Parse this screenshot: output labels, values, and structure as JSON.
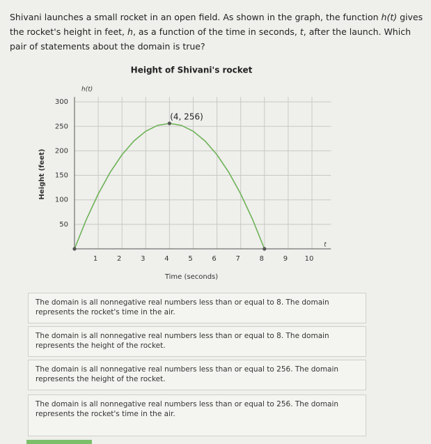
{
  "question": {
    "parts": [
      "Shivani launches a small rocket in an open field. As shown in the graph, the function ",
      "h(t)",
      " gives the rocket's height in feet, ",
      "h",
      ", as a function of the time in seconds, ",
      "t",
      ", after the launch. Which pair of statements about the domain is true?"
    ]
  },
  "chart_data": {
    "type": "line",
    "title": "Height of Shivani's rocket",
    "x_label": "Time (seconds)",
    "y_label": "Height (feet)",
    "x_axis_name": "t",
    "y_axis_name": "h(t)",
    "annotation": "(4, 256)",
    "x": [
      0,
      0.5,
      1,
      1.5,
      2,
      2.5,
      3,
      3.5,
      4,
      4.5,
      5,
      5.5,
      6,
      6.5,
      7,
      7.5,
      8
    ],
    "values": [
      0,
      60,
      112,
      156,
      192,
      220,
      240,
      252,
      256,
      252,
      240,
      220,
      192,
      156,
      112,
      60,
      0
    ],
    "color": "#6db356",
    "points": {
      "x": [
        0,
        4,
        8
      ],
      "y": [
        0,
        256,
        0
      ]
    },
    "xlim": [
      0,
      10.8
    ],
    "ylim": [
      0,
      310
    ],
    "xticks": [
      1,
      2,
      3,
      4,
      5,
      6,
      7,
      8,
      9,
      10
    ],
    "yticks": [
      50,
      100,
      150,
      200,
      250,
      300
    ],
    "grid": true
  },
  "options": [
    "The domain is all nonnegative real numbers less than or equal to 8. The domain represents the rocket's time in the air.",
    "The domain is all nonnegative real numbers less than or equal to 8. The domain represents the height of the rocket.",
    "The domain is all nonnegative real numbers less than or equal to 256. The domain represents the height of the rocket.",
    "The domain is all nonnegative real numbers less than or equal to 256. The domain represents the rocket's time in the air."
  ]
}
